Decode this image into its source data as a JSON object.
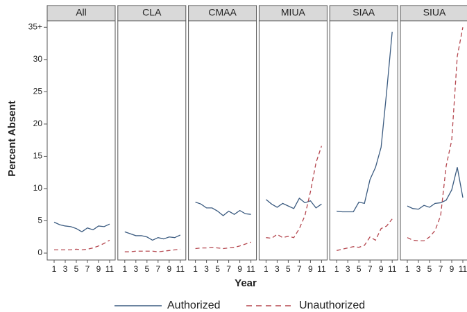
{
  "chart_data": [
    {
      "type": "line",
      "title": "All",
      "ylabel": "Percent Absent",
      "xlabel": "Year",
      "x": [
        1,
        2,
        3,
        4,
        5,
        6,
        7,
        8,
        9,
        10,
        11
      ],
      "xlim": [
        -0.25,
        12
      ],
      "xticks": [
        1,
        3,
        5,
        7,
        9,
        11
      ],
      "ylim": [
        -1.07,
        36
      ],
      "yticks": [
        0,
        5,
        10,
        15,
        20,
        25,
        30,
        {
          "value": 35,
          "label": "35+"
        }
      ],
      "series": [
        {
          "name": "Authorized",
          "color": "#3b5b80",
          "linestyle": "solid",
          "values": [
            4.8,
            4.4,
            4.2,
            4.1,
            3.8,
            3.3,
            3.9,
            3.6,
            4.2,
            4.1,
            4.5
          ]
        },
        {
          "name": "Unauthorized",
          "color": "#b5474f",
          "linestyle": "dashed",
          "values": [
            0.5,
            0.5,
            0.5,
            0.5,
            0.6,
            0.5,
            0.6,
            0.8,
            1.1,
            1.5,
            2.0
          ]
        }
      ]
    },
    {
      "type": "line",
      "title": "CLA",
      "x": [
        1,
        2,
        3,
        4,
        5,
        6,
        7,
        8,
        9,
        10,
        11
      ],
      "xlim": [
        -0.25,
        12
      ],
      "xticks": [
        1,
        3,
        5,
        7,
        9,
        11
      ],
      "ylim": [
        -1.07,
        36
      ],
      "series": [
        {
          "color": "#3b5b80",
          "linestyle": "solid",
          "values": [
            3.3,
            3.0,
            2.7,
            2.7,
            2.5,
            2.0,
            2.4,
            2.2,
            2.5,
            2.4,
            2.8
          ]
        },
        {
          "color": "#b5474f",
          "linestyle": "dashed",
          "values": [
            0.2,
            0.2,
            0.3,
            0.3,
            0.3,
            0.3,
            0.2,
            0.3,
            0.4,
            0.5,
            0.6
          ]
        }
      ]
    },
    {
      "type": "line",
      "title": "CMAA",
      "x": [
        1,
        2,
        3,
        4,
        5,
        6,
        7,
        8,
        9,
        10,
        11
      ],
      "xlim": [
        -0.25,
        12
      ],
      "xticks": [
        1,
        3,
        5,
        7,
        9,
        11
      ],
      "ylim": [
        -1.07,
        36
      ],
      "series": [
        {
          "color": "#3b5b80",
          "linestyle": "solid",
          "values": [
            7.9,
            7.6,
            7.0,
            7.0,
            6.5,
            5.8,
            6.5,
            6.0,
            6.6,
            6.1,
            6.0
          ]
        },
        {
          "color": "#b5474f",
          "linestyle": "dashed",
          "values": [
            0.7,
            0.8,
            0.8,
            0.9,
            0.8,
            0.7,
            0.8,
            0.9,
            1.1,
            1.4,
            1.7
          ]
        }
      ]
    },
    {
      "type": "line",
      "title": "MIUA",
      "x": [
        1,
        2,
        3,
        4,
        5,
        6,
        7,
        8,
        9,
        10,
        11
      ],
      "xlim": [
        -0.25,
        12
      ],
      "xticks": [
        1,
        3,
        5,
        7,
        9,
        11
      ],
      "ylim": [
        -1.07,
        36
      ],
      "series": [
        {
          "color": "#3b5b80",
          "linestyle": "solid",
          "values": [
            8.3,
            7.6,
            7.1,
            7.7,
            7.3,
            6.9,
            8.5,
            7.8,
            8.1,
            7.0,
            7.6
          ]
        },
        {
          "color": "#b5474f",
          "linestyle": "dashed",
          "values": [
            2.4,
            2.3,
            2.9,
            2.4,
            2.6,
            2.4,
            3.8,
            5.8,
            9.5,
            14,
            16.6
          ]
        }
      ]
    },
    {
      "type": "line",
      "title": "SIAA",
      "x": [
        1,
        2,
        3,
        4,
        5,
        6,
        7,
        8,
        9,
        10,
        11
      ],
      "xlim": [
        -0.25,
        12
      ],
      "xticks": [
        1,
        3,
        5,
        7,
        9,
        11
      ],
      "ylim": [
        -1.07,
        36
      ],
      "series": [
        {
          "color": "#3b5b80",
          "linestyle": "solid",
          "values": [
            6.5,
            6.4,
            6.4,
            6.4,
            7.9,
            7.7,
            11.4,
            13.3,
            16.4,
            25,
            34.3
          ]
        },
        {
          "color": "#b5474f",
          "linestyle": "dashed",
          "values": [
            0.4,
            0.6,
            0.8,
            1.0,
            0.9,
            1.2,
            2.5,
            2.0,
            3.8,
            4.2,
            5.3
          ]
        }
      ]
    },
    {
      "type": "line",
      "title": "SIUA",
      "x": [
        1,
        2,
        3,
        4,
        5,
        6,
        7,
        8,
        9,
        10,
        11
      ],
      "xlim": [
        -0.25,
        12
      ],
      "xticks": [
        1,
        3,
        5,
        7,
        9,
        11
      ],
      "ylim": [
        -1.07,
        36
      ],
      "series": [
        {
          "color": "#3b5b80",
          "linestyle": "solid",
          "values": [
            7.3,
            6.9,
            6.8,
            7.4,
            7.1,
            7.7,
            7.8,
            8.2,
            9.8,
            13.3,
            8.6
          ]
        },
        {
          "color": "#b5474f",
          "linestyle": "dashed",
          "values": [
            2.4,
            2.0,
            1.9,
            1.9,
            2.5,
            3.5,
            5.8,
            13.5,
            17.5,
            30.5,
            35
          ]
        }
      ]
    }
  ]
}
